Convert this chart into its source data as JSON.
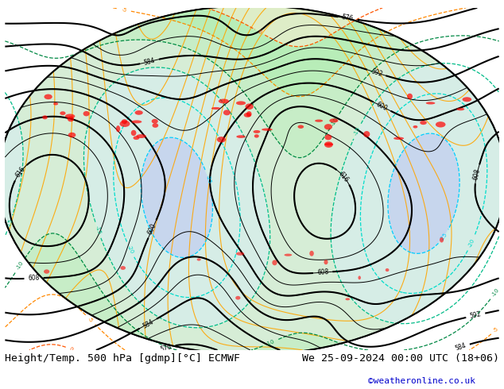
{
  "title_left": "Height/Temp. 500 hPa [gdmp][°C] ECMWF",
  "title_right": "We 25-09-2024 00:00 UTC (18+06)",
  "credit": "©weatheronline.co.uk",
  "bg_color": "#ffffff",
  "title_fontsize": 9.5,
  "credit_color": "#0000cc",
  "credit_fontsize": 8
}
